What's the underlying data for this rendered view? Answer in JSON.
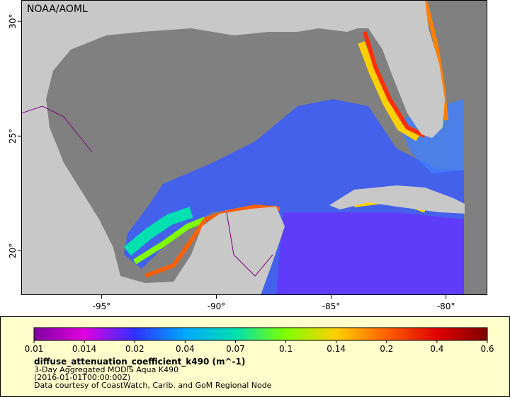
{
  "header": {
    "title": "NOAA/AOML"
  },
  "map": {
    "xlim": [
      -98.5,
      -78.2
    ],
    "ylim": [
      18.07,
      30.93
    ],
    "xticks": [
      {
        "value": -95,
        "label": "-95°"
      },
      {
        "value": -90,
        "label": "-90°"
      },
      {
        "value": -85,
        "label": "-85°"
      },
      {
        "value": -80,
        "label": "-80°"
      }
    ],
    "yticks": [
      {
        "value": 20,
        "label": "20°"
      },
      {
        "value": 25,
        "label": "25°"
      },
      {
        "value": 30,
        "label": "30°"
      }
    ]
  },
  "legend": {
    "variable": "diffuse_attenuation_coefficient_k490 (m^-1)",
    "lines": [
      "3-Day Aggregated MODIS Aqua K490",
      "(2016-01-01T00:00:00Z)",
      "Data courtesy of CoastWatch, Carib. and GoM Regional Node"
    ],
    "colorbar": {
      "ticks": [
        0.01,
        0.014,
        0.02,
        0.04,
        0.07,
        0.1,
        0.14,
        0.2,
        0.4,
        0.6
      ],
      "colors": [
        "#8000a0",
        "#e000e0",
        "#3030ff",
        "#00a8ff",
        "#00e0b0",
        "#80ff00",
        "#ffd000",
        "#ff6000",
        "#e00000",
        "#800000"
      ]
    }
  }
}
